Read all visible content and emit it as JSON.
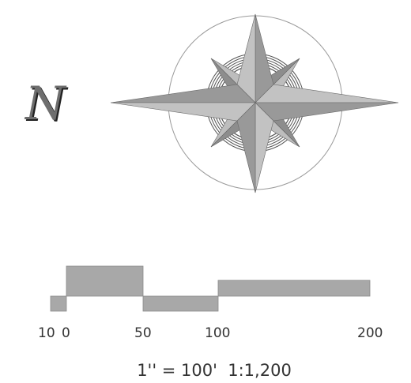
{
  "north_arrow": {
    "label": "N"
  },
  "scale_bar": {
    "ticks": [
      "10",
      "0",
      "50",
      "100",
      "200"
    ],
    "units": "feet",
    "caption": "1'' = 100'  1:1,200"
  },
  "colors": {
    "rose_light": "#b4b4b4",
    "rose_dark": "#909090",
    "ring": "#8c8c8c",
    "scale_fill": "#a8a8a8",
    "text": "#333333"
  },
  "icons": [
    "compass-rose-icon",
    "north-arrow-icon"
  ]
}
